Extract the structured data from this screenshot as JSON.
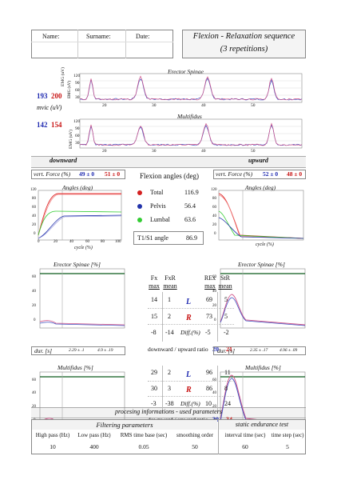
{
  "header": {
    "name_label": "Name:",
    "surname_label": "Surname:",
    "date_label": "Date:",
    "title_line1": "Flexion - Relaxation sequence",
    "title_line2": "(3 repetitions)"
  },
  "emg": {
    "title_erector": "Erector Spinae",
    "title_multifidus": "Multifidus",
    "ylabel": "EMG (uV)",
    "mvic_label": "mvic (uV)",
    "mvic_erector_left": "193",
    "mvic_erector_right": "200",
    "mvic_multi_left": "142",
    "mvic_multi_right": "154",
    "yticks_erector": [
      "120",
      "90",
      "60",
      "30"
    ],
    "yticks_multi": [
      "120",
      "90",
      "60",
      "30"
    ],
    "xticks": [
      "20",
      "30",
      "40",
      "50"
    ]
  },
  "sections": {
    "downward": "downward",
    "upward": "upward"
  },
  "force": {
    "label": "vert. Force (%)",
    "down_blue": "49 ± 0",
    "down_red": "51 ± 0",
    "up_blue": "52 ± 0",
    "up_red": "48 ± 0"
  },
  "angles": {
    "title": "Flexion angles (deg)",
    "plot_title": "Angles (deg)",
    "xlabel": "cycle (%)",
    "yticks": [
      "120",
      "80",
      "60",
      "40",
      "20",
      "0"
    ],
    "xticks": [
      "0",
      "20",
      "40",
      "60",
      "80",
      "100"
    ],
    "rows": [
      {
        "label": "Total",
        "value": "116.9",
        "color": "#d42020"
      },
      {
        "label": "Pelvis",
        "value": "56.4",
        "color": "#2233aa"
      },
      {
        "label": "Lumbal",
        "value": "63.6",
        "color": "#33cc33"
      }
    ],
    "t1s1_label": "T1/S1 angle",
    "t1s1_value": "86.9"
  },
  "erector": {
    "plot_title": "Erector Spinae [%]",
    "yticks": [
      "60",
      "40",
      "20",
      "0"
    ],
    "head_fx": "Fx",
    "head_fx2": "max",
    "head_fxr": "FxR",
    "head_fxr2": "mean",
    "head_rex": "REx",
    "head_rex2": "max",
    "head_str": "StR",
    "head_str2": "mean",
    "row_l": [
      "14",
      "1",
      "69",
      "5"
    ],
    "row_r": [
      "15",
      "2",
      "73",
      "5"
    ],
    "row_diff": [
      "-8",
      "-14",
      "-5",
      "-2"
    ],
    "l_label": "L",
    "r_label": "R",
    "diff_label": "Diff.(%)",
    "ratio_label": "downward / upward ratio",
    "ratio_blue": "20",
    "ratio_red": "21",
    "dur_label": "dur. [s]",
    "dur_down_a": "2.29 ± .1",
    "dur_down_b": "4.9 ± .19",
    "dur_up_a": "2.35 ± .17",
    "dur_up_b": "4.96 ± .09"
  },
  "multifidus": {
    "plot_title": "Multifidus [%]",
    "yticks": [
      "60",
      "40",
      "20",
      "0"
    ],
    "row_l": [
      "29",
      "2",
      "96",
      "11"
    ],
    "row_r": [
      "30",
      "3",
      "86",
      "8"
    ],
    "row_diff": [
      "-3",
      "-38",
      "10",
      "24"
    ],
    "l_label": "L",
    "r_label": "R",
    "diff_label": "Diff.(%)",
    "ratio_label": "downward / upward ratio",
    "ratio_blue": "30",
    "ratio_red": "34"
  },
  "processing": {
    "title": "procesing informations - used parameters",
    "filter_title": "Filtering parameters",
    "static_title": "static endurance test",
    "cols": [
      "High pass (Hz)",
      "Low pass (Hz)",
      "RMS time base (sec)",
      "smoothing order",
      "interval time (sec)",
      "time step (sec)"
    ],
    "values": [
      "10",
      "400",
      "0.05",
      "50",
      "60",
      "5"
    ]
  },
  "colors": {
    "blue": "#1f2ab0",
    "red": "#c81414",
    "pink": "#d0558a",
    "green": "#2e9a3a",
    "dark_green": "#0a5a1a"
  }
}
